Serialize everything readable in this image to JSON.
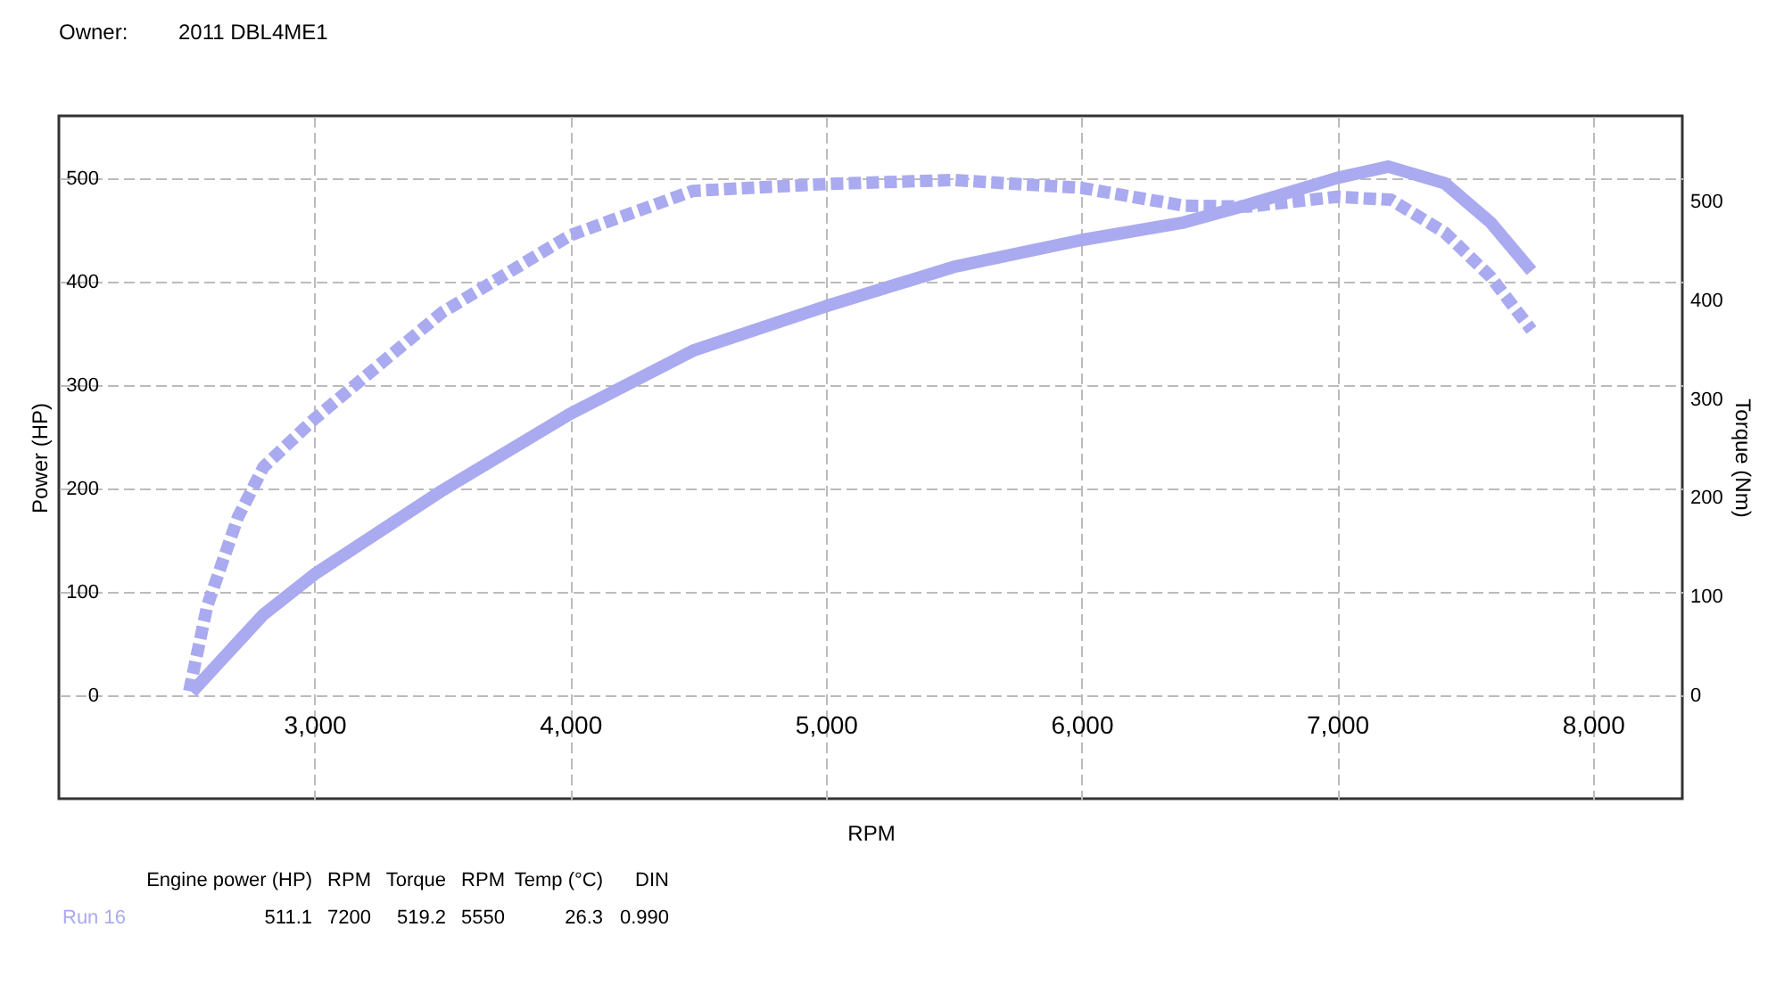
{
  "chart_data": {
    "type": "line",
    "xlabel": "RPM",
    "ylabel": "Power (HP)",
    "y2label": "Torque (Nm)",
    "annotations": [
      "Owner:",
      "2011 DBL4ME1",
      "Engine power (HP)",
      "RPM",
      "Torque",
      "RPM",
      "Temp (°C)",
      "DIN",
      "Run 16",
      "511.1",
      "7200",
      "519.2",
      "5550",
      "26.3",
      "0.990"
    ],
    "xlim": [
      2000,
      8350
    ],
    "xticks": [
      {
        "value": 3000,
        "label": "3,000"
      },
      {
        "value": 4000,
        "label": "4,000"
      },
      {
        "value": 5000,
        "label": "5,000"
      },
      {
        "value": 6000,
        "label": "6,000"
      },
      {
        "value": 7000,
        "label": "7,000"
      },
      {
        "value": 8000,
        "label": "8,000"
      }
    ],
    "ylim": [
      -100,
      560
    ],
    "yticks": [
      0,
      100,
      200,
      300,
      400,
      500
    ],
    "y2lim": [
      -105,
      587
    ],
    "y2ticks": [
      0,
      100,
      200,
      300,
      400,
      500
    ],
    "grid": true,
    "series": [
      {
        "color": "#aaaaf0",
        "line_style": "solid",
        "x": [
          2520,
          2800,
          3000,
          3500,
          4000,
          4480,
          5000,
          5500,
          6000,
          6400,
          6650,
          7000,
          7200,
          7420,
          7600,
          7760
        ],
        "values": [
          3,
          78,
          117,
          198,
          272,
          333,
          376,
          414,
          440,
          457,
          474,
          500,
          511,
          495,
          457,
          410
        ]
      },
      {
        "color": "#aaaaf0",
        "line_style": "dashed",
        "axis": "y2",
        "x": [
          2510,
          2580,
          2700,
          2800,
          3000,
          3500,
          4000,
          4480,
          5000,
          5500,
          6000,
          6400,
          6650,
          7000,
          7210,
          7420,
          7600,
          7760
        ],
        "values": [
          4,
          90,
          180,
          231,
          280,
          388,
          466,
          511,
          518,
          522,
          514,
          496,
          495,
          505,
          502,
          469,
          424,
          370
        ]
      }
    ]
  }
}
